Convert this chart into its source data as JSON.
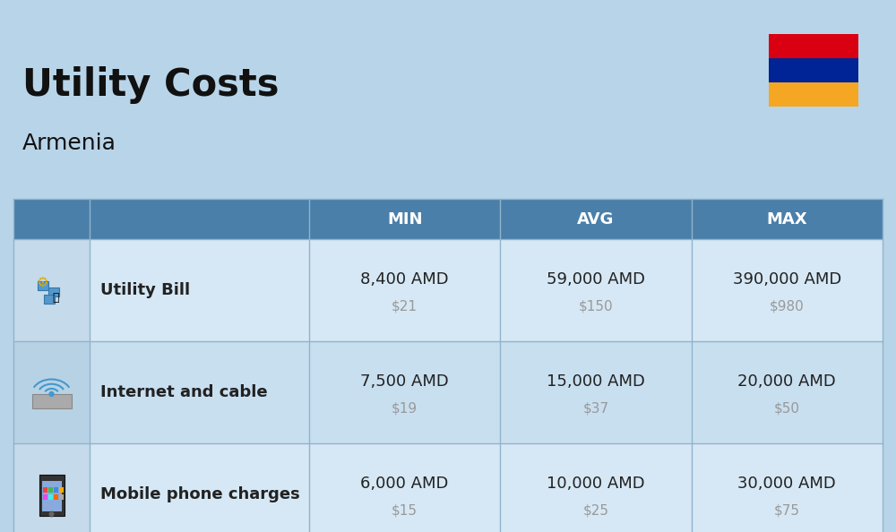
{
  "title": "Utility Costs",
  "subtitle": "Armenia",
  "bg_color": "#b8d4e8",
  "header_bg": "#4a7faa",
  "header_text_color": "#ffffff",
  "row_bg_odd": "#d6e8f5",
  "row_bg_even": "#c8dff0",
  "icon_col_bg_odd": "#c5daea",
  "icon_col_bg_even": "#b8d2e5",
  "col_headers": [
    "MIN",
    "AVG",
    "MAX"
  ],
  "rows": [
    {
      "label": "Utility Bill",
      "min_amd": "8,400 AMD",
      "min_usd": "$21",
      "avg_amd": "59,000 AMD",
      "avg_usd": "$150",
      "max_amd": "390,000 AMD",
      "max_usd": "$980"
    },
    {
      "label": "Internet and cable",
      "min_amd": "7,500 AMD",
      "min_usd": "$19",
      "avg_amd": "15,000 AMD",
      "avg_usd": "$37",
      "max_amd": "20,000 AMD",
      "max_usd": "$50"
    },
    {
      "label": "Mobile phone charges",
      "min_amd": "6,000 AMD",
      "min_usd": "$15",
      "avg_amd": "10,000 AMD",
      "avg_usd": "$25",
      "max_amd": "30,000 AMD",
      "max_usd": "$75"
    }
  ],
  "flag_colors": [
    "#d90012",
    "#002395",
    "#f5a623"
  ],
  "text_color_dark": "#111111",
  "text_color_usd": "#999999",
  "cell_text_color": "#222222",
  "title_fontsize": 30,
  "subtitle_fontsize": 18,
  "header_fontsize": 13,
  "label_fontsize": 13,
  "amd_fontsize": 13,
  "usd_fontsize": 11,
  "fig_width": 10.0,
  "fig_height": 5.94,
  "dpi": 100
}
